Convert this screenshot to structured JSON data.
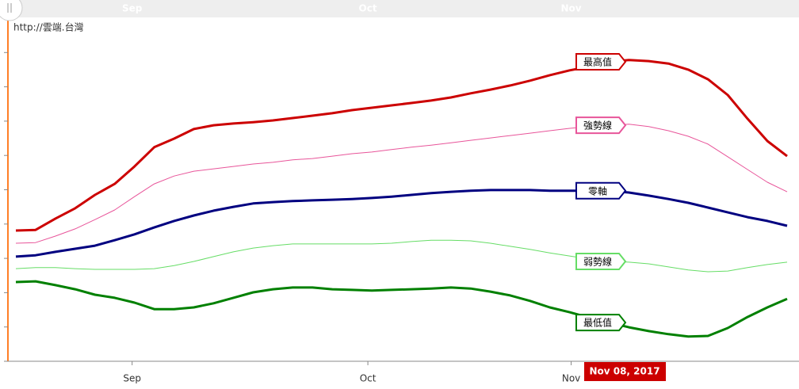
{
  "chart_data": {
    "type": "line",
    "watermark": "http://雲端.台灣",
    "crosshair_label": "Nov 08, 2017",
    "x": [
      1,
      3.5,
      6,
      8.5,
      11,
      13.5,
      16,
      18.5,
      21,
      23.5,
      26,
      28.5,
      31,
      33.5,
      36,
      38.5,
      41,
      43.5,
      46,
      48.5,
      51,
      53.5,
      56,
      58.5,
      61,
      63.5,
      66,
      68.5,
      71,
      73.5,
      76,
      78.5,
      81,
      83.5,
      86,
      88.5,
      91,
      93.5,
      96,
      98.5
    ],
    "xlim": [
      0,
      100
    ],
    "xticks": [
      {
        "value": 15.7,
        "label": "Sep"
      },
      {
        "value": 45.5,
        "label": "Oct"
      },
      {
        "value": 71.2,
        "label": "Nov"
      }
    ],
    "ylim": [
      0,
      10
    ],
    "yticks": [
      0,
      1,
      2,
      3,
      4,
      5,
      6,
      7,
      8,
      9,
      10
    ],
    "series": [
      {
        "name": "最高值",
        "color": "#cc0000",
        "values": [
          3.81,
          3.83,
          4.16,
          4.46,
          4.85,
          5.17,
          5.68,
          6.24,
          6.49,
          6.77,
          6.88,
          6.93,
          6.97,
          7.02,
          7.09,
          7.16,
          7.23,
          7.32,
          7.39,
          7.46,
          7.53,
          7.6,
          7.69,
          7.81,
          7.92,
          8.04,
          8.18,
          8.34,
          8.48,
          8.59,
          8.73,
          8.78,
          8.75,
          8.68,
          8.5,
          8.22,
          7.76,
          7.07,
          6.42,
          5.98
        ]
      },
      {
        "name": "強勢線",
        "color": "#e8559a",
        "values": [
          3.44,
          3.46,
          3.65,
          3.86,
          4.13,
          4.41,
          4.8,
          5.17,
          5.4,
          5.54,
          5.61,
          5.68,
          5.75,
          5.8,
          5.87,
          5.91,
          5.98,
          6.05,
          6.1,
          6.17,
          6.24,
          6.3,
          6.37,
          6.44,
          6.51,
          6.58,
          6.65,
          6.72,
          6.79,
          6.84,
          6.88,
          6.91,
          6.84,
          6.72,
          6.56,
          6.33,
          5.96,
          5.59,
          5.22,
          4.94
        ]
      },
      {
        "name": "零軸",
        "color": "#000080",
        "values": [
          3.05,
          3.09,
          3.19,
          3.28,
          3.37,
          3.53,
          3.7,
          3.9,
          4.09,
          4.25,
          4.39,
          4.5,
          4.6,
          4.64,
          4.67,
          4.69,
          4.71,
          4.73,
          4.76,
          4.8,
          4.85,
          4.9,
          4.94,
          4.97,
          4.99,
          4.99,
          4.99,
          4.97,
          4.97,
          4.97,
          4.97,
          4.92,
          4.83,
          4.73,
          4.62,
          4.48,
          4.34,
          4.2,
          4.09,
          3.95
        ]
      },
      {
        "name": "弱勢線",
        "color": "#66dd66",
        "values": [
          2.7,
          2.73,
          2.73,
          2.7,
          2.68,
          2.68,
          2.68,
          2.7,
          2.79,
          2.91,
          3.05,
          3.19,
          3.3,
          3.37,
          3.42,
          3.42,
          3.42,
          3.42,
          3.42,
          3.44,
          3.49,
          3.53,
          3.53,
          3.51,
          3.44,
          3.35,
          3.26,
          3.16,
          3.07,
          2.98,
          2.91,
          2.89,
          2.84,
          2.75,
          2.66,
          2.61,
          2.63,
          2.73,
          2.82,
          2.89
        ]
      },
      {
        "name": "最低值",
        "color": "#008000",
        "values": [
          2.31,
          2.33,
          2.22,
          2.1,
          1.94,
          1.85,
          1.71,
          1.52,
          1.52,
          1.57,
          1.69,
          1.85,
          2.01,
          2.1,
          2.15,
          2.15,
          2.1,
          2.08,
          2.06,
          2.08,
          2.1,
          2.12,
          2.15,
          2.12,
          2.03,
          1.92,
          1.76,
          1.57,
          1.43,
          1.27,
          1.13,
          0.99,
          0.88,
          0.79,
          0.72,
          0.74,
          0.97,
          1.29,
          1.57,
          1.82
        ]
      }
    ]
  }
}
